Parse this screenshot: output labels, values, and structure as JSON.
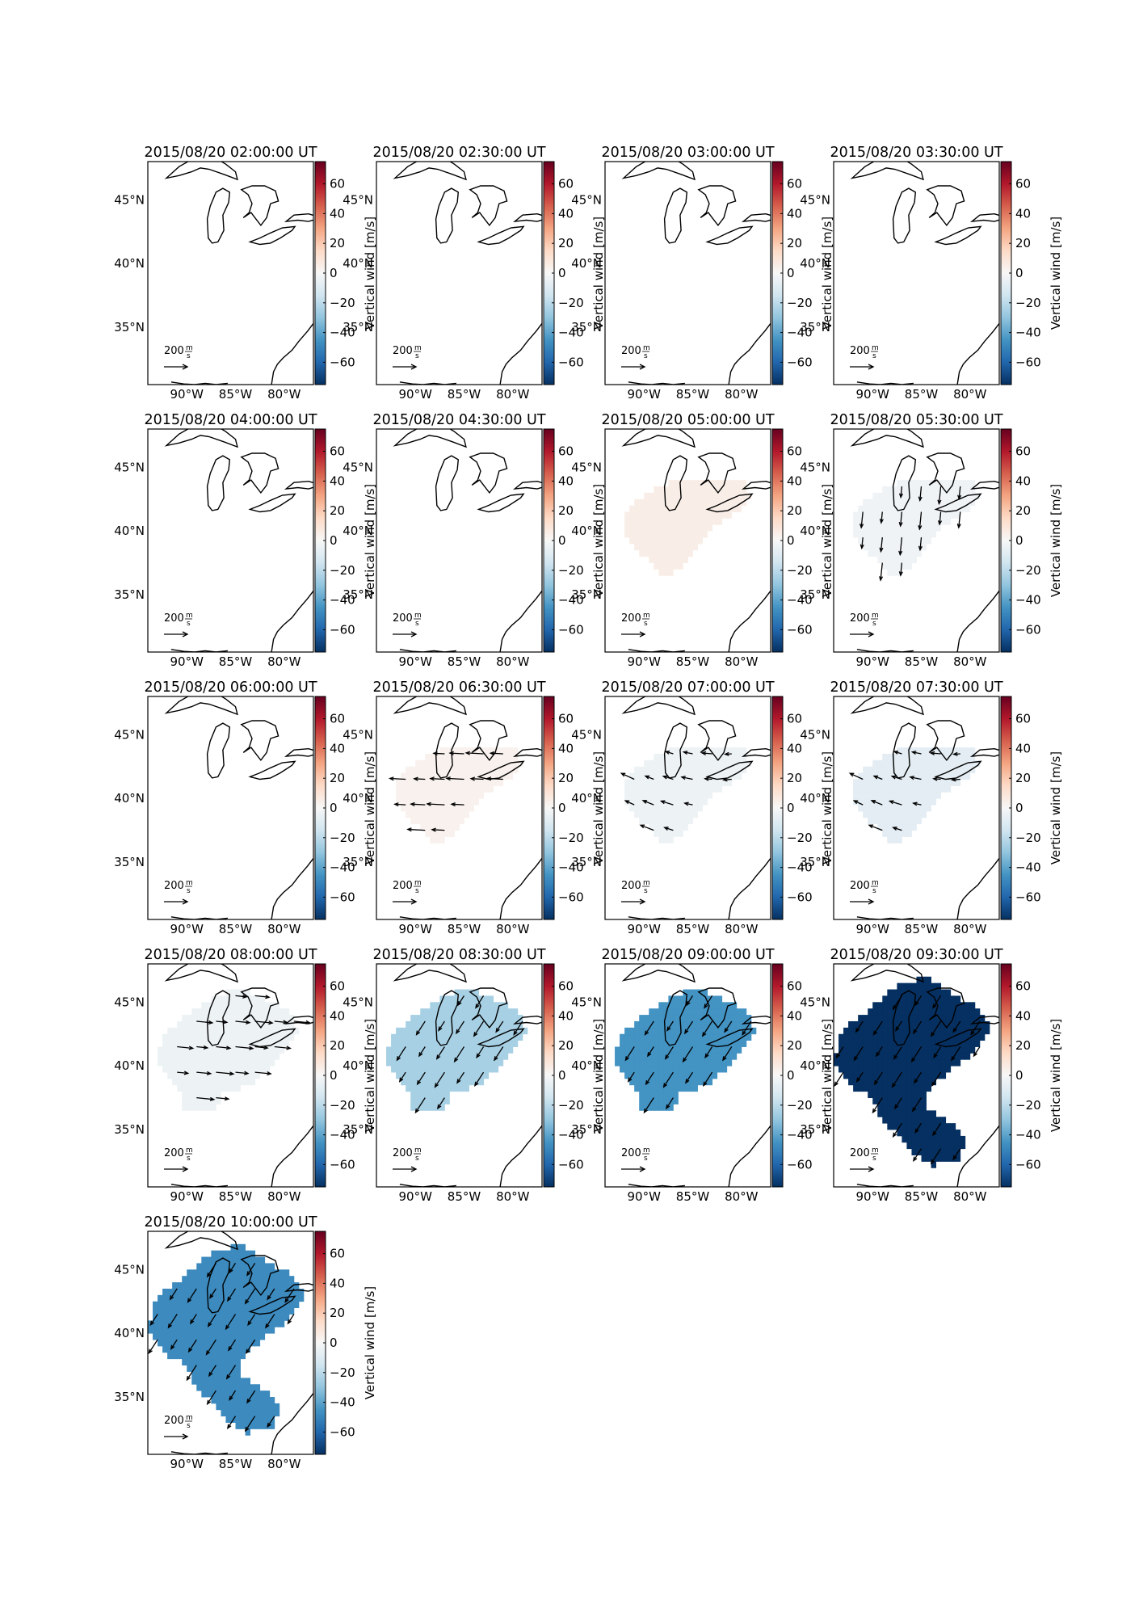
{
  "chart_data": {
    "type": "heatmap",
    "colormap": "RdBu_r",
    "colorbar": {
      "label": "Vertical wind [m/s]",
      "range": [
        -75,
        75
      ],
      "ticks": [
        -60,
        -40,
        -20,
        0,
        20,
        40,
        60
      ],
      "tick_labels": [
        "−60",
        "−40",
        "−20",
        "0",
        "20",
        "40",
        "60"
      ]
    },
    "map": {
      "lon_range": [
        -94,
        -77
      ],
      "lat_range": [
        30.5,
        48
      ],
      "lon_ticks": [
        -90,
        -85,
        -80
      ],
      "lon_tick_labels": [
        "90°W",
        "85°W",
        "80°W"
      ],
      "lat_ticks": [
        35,
        40,
        45
      ],
      "lat_tick_labels": [
        "35°N",
        "40°N",
        "45°N"
      ]
    },
    "reference_vector": {
      "label_value": "200",
      "label_unit_num": "m",
      "label_unit_den": "s"
    },
    "panels": [
      {
        "title": "2015/08/20 02:00:00 UT",
        "value": null,
        "region": "none",
        "arrows": "none"
      },
      {
        "title": "2015/08/20 02:30:00 UT",
        "value": null,
        "region": "none",
        "arrows": "none"
      },
      {
        "title": "2015/08/20 03:00:00 UT",
        "value": null,
        "region": "none",
        "arrows": "none"
      },
      {
        "title": "2015/08/20 03:30:00 UT",
        "value": null,
        "region": "none",
        "arrows": "none"
      },
      {
        "title": "2015/08/20 04:00:00 UT",
        "value": null,
        "region": "none",
        "arrows": "none"
      },
      {
        "title": "2015/08/20 04:30:00 UT",
        "value": null,
        "region": "none",
        "arrows": "none"
      },
      {
        "title": "2015/08/20 05:00:00 UT",
        "value": 5,
        "region": "small",
        "arrows": "none"
      },
      {
        "title": "2015/08/20 05:30:00 UT",
        "value": -3,
        "region": "small",
        "arrows": "south"
      },
      {
        "title": "2015/08/20 06:00:00 UT",
        "value": null,
        "region": "none",
        "arrows": "none"
      },
      {
        "title": "2015/08/20 06:30:00 UT",
        "value": 3,
        "region": "small",
        "arrows": "west"
      },
      {
        "title": "2015/08/20 07:00:00 UT",
        "value": -4,
        "region": "small",
        "arrows": "mixed"
      },
      {
        "title": "2015/08/20 07:30:00 UT",
        "value": -8,
        "region": "small",
        "arrows": "mixed"
      },
      {
        "title": "2015/08/20 08:00:00 UT",
        "value": -4,
        "region": "medium",
        "arrows": "east"
      },
      {
        "title": "2015/08/20 08:30:00 UT",
        "value": -25,
        "region": "medium",
        "arrows": "southwest"
      },
      {
        "title": "2015/08/20 09:00:00 UT",
        "value": -45,
        "region": "medium",
        "arrows": "southwest"
      },
      {
        "title": "2015/08/20 09:30:00 UT",
        "value": -75,
        "region": "large",
        "arrows": "southwest"
      },
      {
        "title": "2015/08/20 10:00:00 UT",
        "value": -48,
        "region": "large",
        "arrows": "southwest"
      }
    ]
  }
}
